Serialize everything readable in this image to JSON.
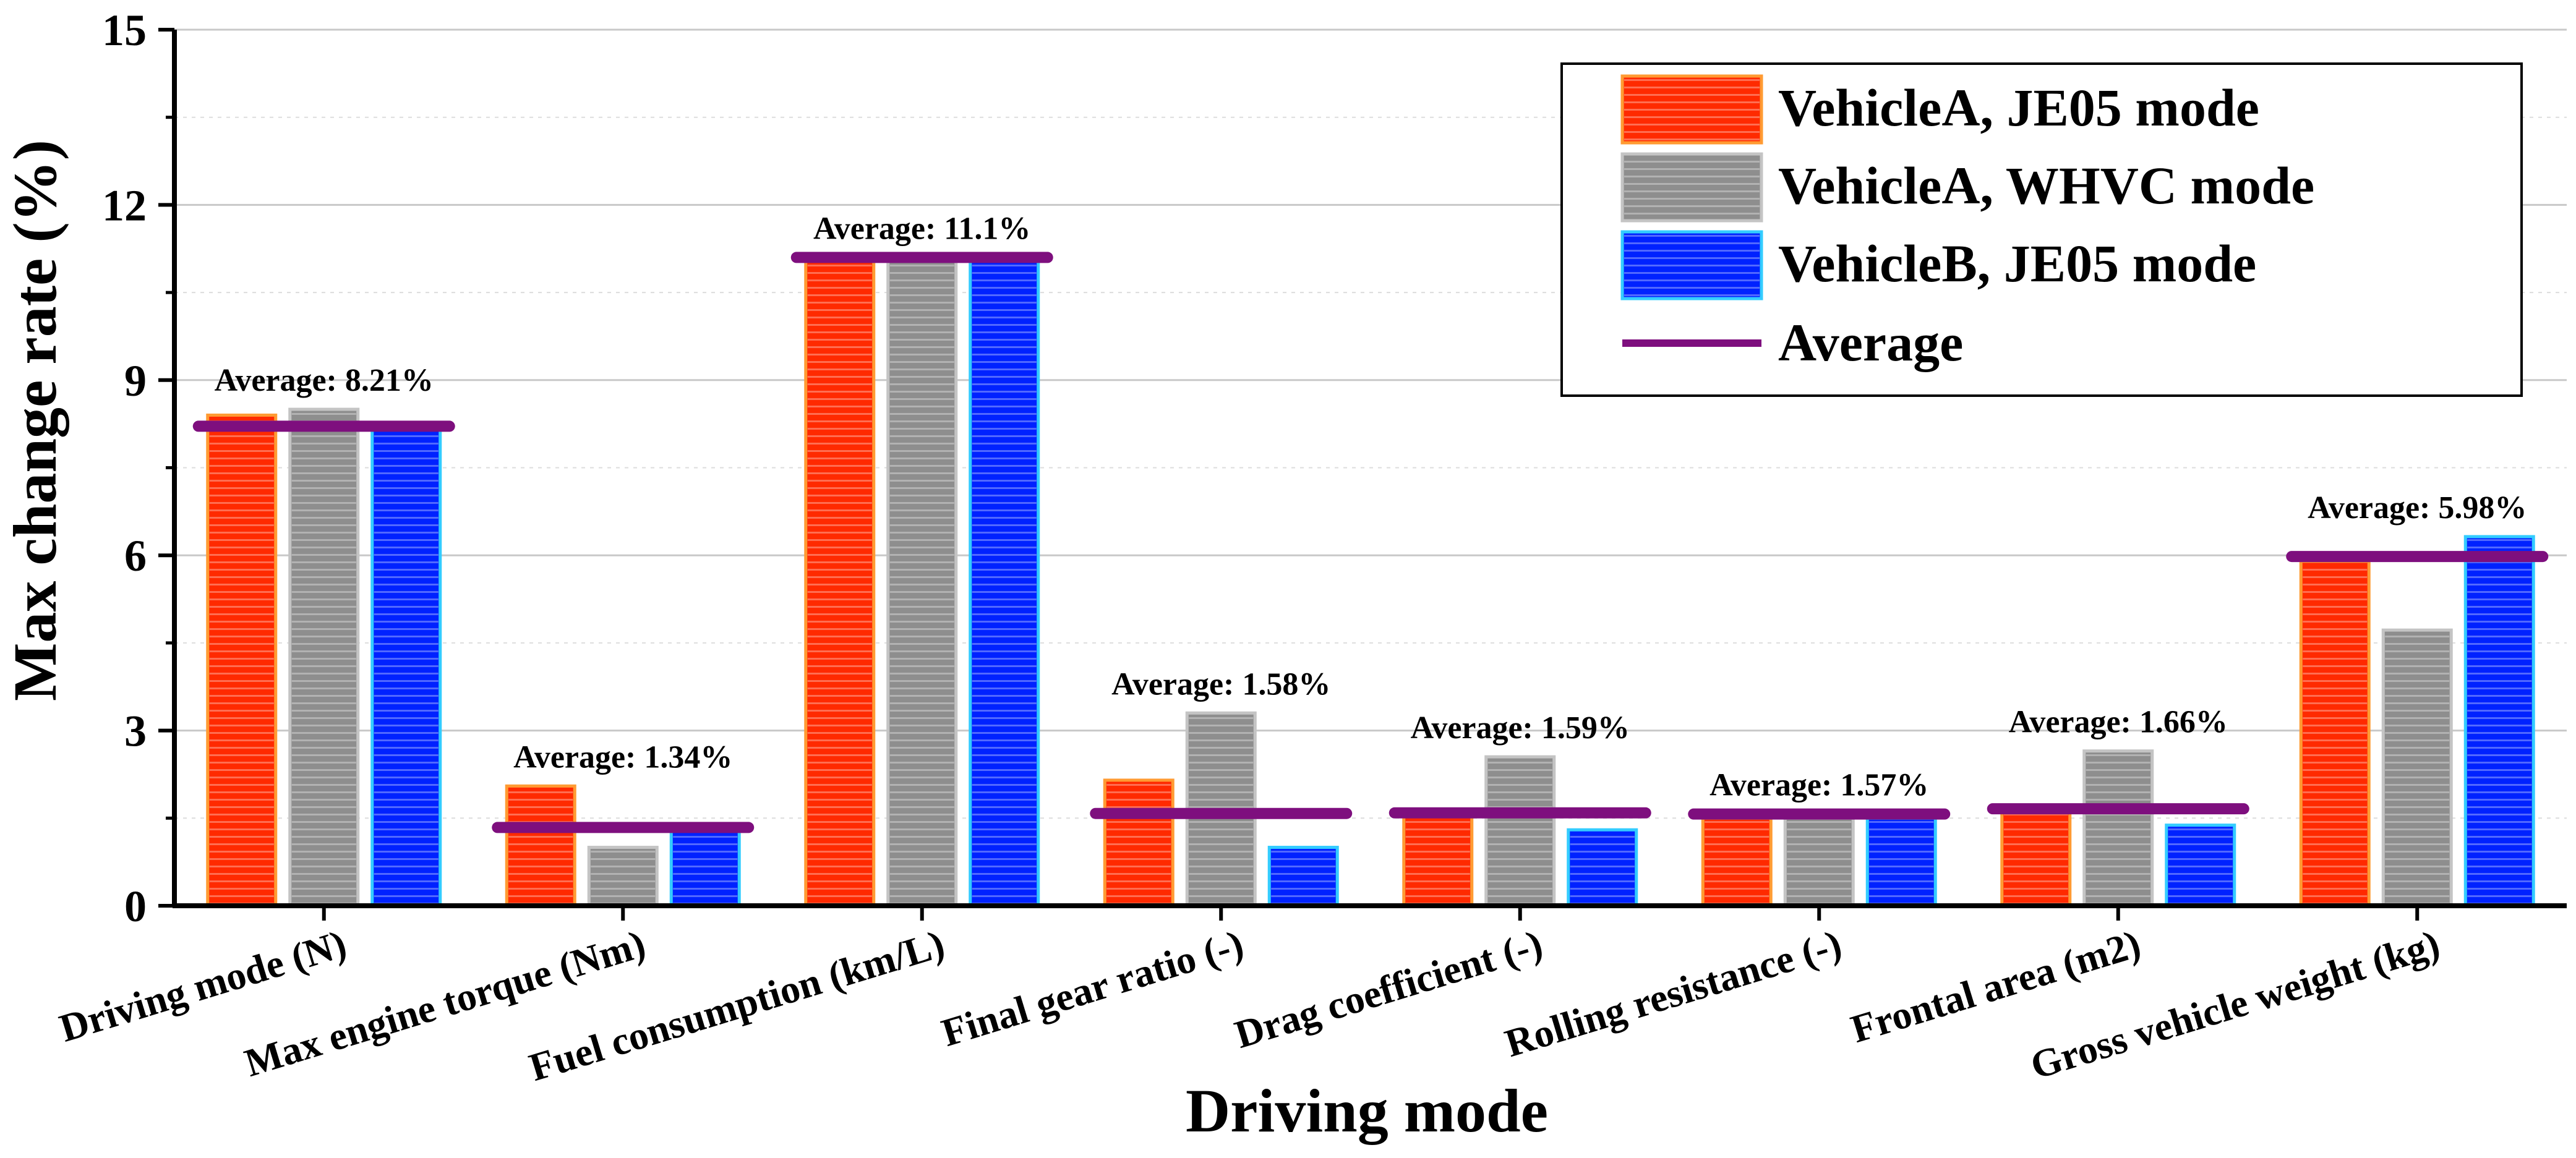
{
  "chart_data": {
    "type": "bar",
    "xlabel": "Driving mode",
    "ylabel": "Max change rate (%)",
    "ylim": [
      0,
      15
    ],
    "yticks": [
      0,
      3,
      6,
      9,
      12,
      15
    ],
    "grid": true,
    "legend_position": "top-right",
    "categories": [
      "Driving mode (N)",
      "Max engine torque (Nm)",
      "Fuel consumption (km/L)",
      "Final gear ratio (-)",
      "Drag coefficient (-)",
      "Rolling resistance (-)",
      "Frontal area (m2)",
      "Gross vehicle weight (kg)"
    ],
    "series": [
      {
        "name": "VehicleA, JE05 mode",
        "color": "#ff2a00",
        "border": "#ff9b33",
        "values": [
          8.4,
          2.05,
          11.1,
          2.15,
          1.6,
          1.5,
          1.62,
          5.9
        ]
      },
      {
        "name": "VehicleA, WHVC mode",
        "color": "#8e8e8e",
        "border": "#c4c4c4",
        "values": [
          8.5,
          1.0,
          11.1,
          3.3,
          2.55,
          1.5,
          2.65,
          4.72
        ]
      },
      {
        "name": "VehicleB, JE05 mode",
        "color": "#0022ff",
        "border": "#33ccff",
        "values": [
          8.15,
          1.3,
          11.1,
          1.0,
          1.3,
          1.5,
          1.38,
          6.32
        ]
      }
    ],
    "average": {
      "name": "Average",
      "color": "#7e0f7e",
      "values": [
        8.21,
        1.34,
        11.1,
        1.58,
        1.59,
        1.57,
        1.66,
        5.98
      ],
      "labels": [
        "Average: 8.21%",
        "Average: 1.34%",
        "Average: 11.1%",
        "Average: 1.58%",
        "Average: 1.59%",
        "Average: 1.57%",
        "Average: 1.66%",
        "Average: 5.98%"
      ]
    }
  }
}
